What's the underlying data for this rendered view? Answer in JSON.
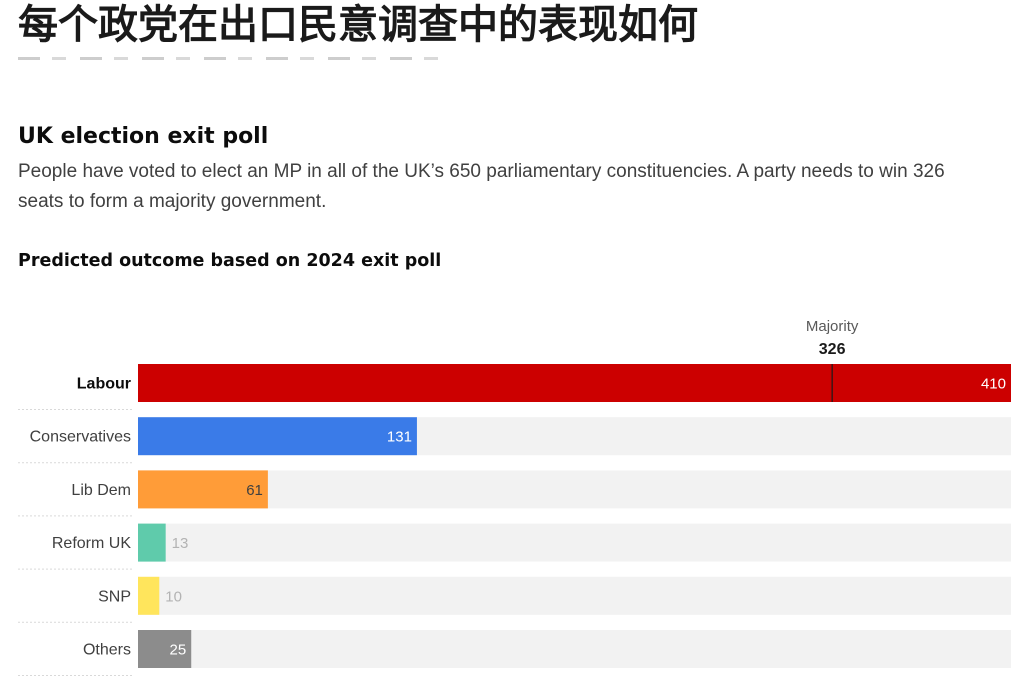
{
  "headline": "每个政党在出口民意调查中的表现如何",
  "chart_data": {
    "type": "bar",
    "orientation": "horizontal",
    "title": "UK election exit poll",
    "description": "People have voted to elect an MP in all of the UK’s 650 parliamentary constituencies. A party needs to win 326 seats to form a majority government.",
    "subtitle": "Predicted outcome based on 2024 exit poll",
    "xlim": [
      0,
      410
    ],
    "grid": false,
    "categories": [
      "Labour",
      "Conservatives",
      "Lib Dem",
      "Reform UK",
      "SNP",
      "Others"
    ],
    "values": [
      410,
      131,
      61,
      13,
      10,
      25
    ],
    "highlight": "Labour",
    "colors": {
      "Labour": "#cc0000",
      "Conservatives": "#3a7be8",
      "Lib Dem": "#ff9c38",
      "Reform UK": "#5fcbab",
      "SNP": "#ffe55c",
      "Others": "#8c8c8c",
      "track": "#f2f2f2",
      "separator": "#d9d9d9"
    },
    "value_label_colors": {
      "Labour": "#ffffff",
      "Conservatives": "#ffffff",
      "Lib Dem": "#404040",
      "Reform UK": "#b3b3b3",
      "SNP": "#b3b3b3",
      "Others": "#ffffff"
    },
    "value_label_inside": {
      "Labour": true,
      "Conservatives": true,
      "Lib Dem": true,
      "Reform UK": false,
      "SNP": false,
      "Others": true
    },
    "reference_line": {
      "label": "Majority",
      "value": 326
    }
  }
}
